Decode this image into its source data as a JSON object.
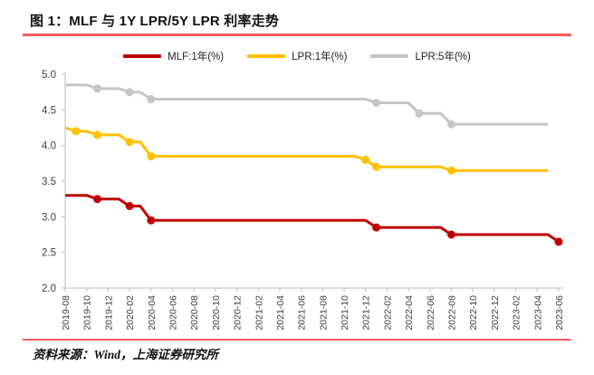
{
  "title": "图 1：MLF 与 1Y LPR/5Y LPR 利率走势",
  "source": "资料来源：Wind，上海证券研究所",
  "colors": {
    "accent_rule": "#FA5C5C",
    "axis": "#C6C6C6",
    "tick_label": "#3F3F3F",
    "mlf_red": "#C00000",
    "lpr1y_yellow": "#FFC000",
    "lpr5y_gray": "#C5C5C5"
  },
  "chart_data": {
    "type": "line",
    "title": "图 1：MLF 与 1Y LPR/5Y LPR 利率走势",
    "xlabel": "",
    "ylabel": "",
    "ylim": [
      2.0,
      5.0
    ],
    "y_ticks": [
      2.0,
      2.5,
      3.0,
      3.5,
      4.0,
      4.5,
      5.0
    ],
    "grid": false,
    "legend_position": "top-center",
    "x_tick_every": 2,
    "x": [
      "2019-08",
      "2019-09",
      "2019-10",
      "2019-11",
      "2019-12",
      "2020-01",
      "2020-02",
      "2020-03",
      "2020-04",
      "2020-05",
      "2020-06",
      "2020-07",
      "2020-08",
      "2020-09",
      "2020-10",
      "2020-11",
      "2020-12",
      "2021-01",
      "2021-02",
      "2021-03",
      "2021-04",
      "2021-05",
      "2021-06",
      "2021-07",
      "2021-08",
      "2021-09",
      "2021-10",
      "2021-11",
      "2021-12",
      "2022-01",
      "2022-02",
      "2022-03",
      "2022-04",
      "2022-05",
      "2022-06",
      "2022-07",
      "2022-08",
      "2022-09",
      "2022-10",
      "2022-11",
      "2022-12",
      "2023-01",
      "2023-02",
      "2023-03",
      "2023-04",
      "2023-05",
      "2023-06"
    ],
    "series": [
      {
        "name": "MLF:1年(%)",
        "color": "#C00000",
        "values": [
          3.3,
          3.3,
          3.3,
          3.25,
          3.25,
          3.25,
          3.15,
          3.15,
          2.95,
          2.95,
          2.95,
          2.95,
          2.95,
          2.95,
          2.95,
          2.95,
          2.95,
          2.95,
          2.95,
          2.95,
          2.95,
          2.95,
          2.95,
          2.95,
          2.95,
          2.95,
          2.95,
          2.95,
          2.95,
          2.85,
          2.85,
          2.85,
          2.85,
          2.85,
          2.85,
          2.85,
          2.75,
          2.75,
          2.75,
          2.75,
          2.75,
          2.75,
          2.75,
          2.75,
          2.75,
          2.75,
          2.65
        ],
        "marker_indices": [
          3,
          6,
          8,
          29,
          36,
          46
        ]
      },
      {
        "name": "LPR:1年(%)",
        "color": "#FFC000",
        "values": [
          4.25,
          4.2,
          4.2,
          4.15,
          4.15,
          4.15,
          4.05,
          4.05,
          3.85,
          3.85,
          3.85,
          3.85,
          3.85,
          3.85,
          3.85,
          3.85,
          3.85,
          3.85,
          3.85,
          3.85,
          3.85,
          3.85,
          3.85,
          3.85,
          3.85,
          3.85,
          3.85,
          3.85,
          3.8,
          3.7,
          3.7,
          3.7,
          3.7,
          3.7,
          3.7,
          3.7,
          3.65,
          3.65,
          3.65,
          3.65,
          3.65,
          3.65,
          3.65,
          3.65,
          3.65,
          3.65
        ],
        "marker_indices": [
          1,
          3,
          6,
          8,
          28,
          29,
          36
        ]
      },
      {
        "name": "LPR:5年(%)",
        "color": "#C5C5C5",
        "values": [
          4.85,
          4.85,
          4.85,
          4.8,
          4.8,
          4.8,
          4.75,
          4.75,
          4.65,
          4.65,
          4.65,
          4.65,
          4.65,
          4.65,
          4.65,
          4.65,
          4.65,
          4.65,
          4.65,
          4.65,
          4.65,
          4.65,
          4.65,
          4.65,
          4.65,
          4.65,
          4.65,
          4.65,
          4.65,
          4.6,
          4.6,
          4.6,
          4.6,
          4.45,
          4.45,
          4.45,
          4.3,
          4.3,
          4.3,
          4.3,
          4.3,
          4.3,
          4.3,
          4.3,
          4.3,
          4.3
        ],
        "marker_indices": [
          3,
          6,
          8,
          29,
          33,
          36
        ]
      }
    ]
  }
}
